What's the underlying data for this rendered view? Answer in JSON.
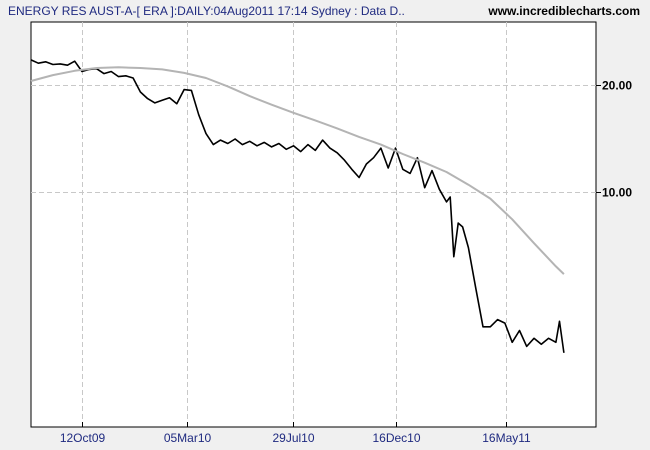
{
  "header": {
    "title": "ENERGY RES AUST-A-[ ERA ]:DAILY:04Aug2011 17:14 Sydney : Data D..",
    "site": "www.incrediblecharts.com"
  },
  "colors": {
    "background": "#f0f0f0",
    "plot_background": "#ffffff",
    "price_line": "#000000",
    "moving_average": "#b4b4b4",
    "grid": "#c8c8c8",
    "title_text": "#1f2a80"
  },
  "chart_data": {
    "type": "line",
    "title": "ENERGY RES AUST-A-[ ERA ]:DAILY:04Aug2011 17:14 Sydney : Data D..",
    "y_scale": "log",
    "ylim": [
      2.2,
      30
    ],
    "xlim": [
      "2009-08-03",
      "2011-09-17"
    ],
    "grid": true,
    "x_ticks": [
      {
        "date": "2009-10-12",
        "label": "12Oct09"
      },
      {
        "date": "2010-03-05",
        "label": "05Mar10"
      },
      {
        "date": "2010-07-29",
        "label": "29Jul10"
      },
      {
        "date": "2010-12-16",
        "label": "16Dec10"
      },
      {
        "date": "2011-05-16",
        "label": "16May11"
      }
    ],
    "y_ticks": [
      {
        "value": 20,
        "label": "20.00"
      },
      {
        "value": 10,
        "label": "10.00"
      }
    ],
    "series": [
      {
        "name": "",
        "style": "price",
        "x": [
          "2009-08-03",
          "2009-08-13",
          "2009-08-23",
          "2009-09-02",
          "2009-09-12",
          "2009-09-22",
          "2009-10-02",
          "2009-10-12",
          "2009-10-22",
          "2009-11-01",
          "2009-11-11",
          "2009-11-21",
          "2009-12-01",
          "2009-12-11",
          "2009-12-21",
          "2009-12-31",
          "2010-01-10",
          "2010-01-20",
          "2010-01-30",
          "2010-02-09",
          "2010-02-19",
          "2010-03-01",
          "2010-03-11",
          "2010-03-21",
          "2010-03-31",
          "2010-04-10",
          "2010-04-20",
          "2010-04-30",
          "2010-05-10",
          "2010-05-20",
          "2010-05-30",
          "2010-06-09",
          "2010-06-19",
          "2010-06-29",
          "2010-07-09",
          "2010-07-19",
          "2010-07-29",
          "2010-08-08",
          "2010-08-18",
          "2010-08-28",
          "2010-09-07",
          "2010-09-17",
          "2010-09-27",
          "2010-10-07",
          "2010-10-17",
          "2010-10-27",
          "2010-11-06",
          "2010-11-16",
          "2010-11-26",
          "2010-12-06",
          "2010-12-16",
          "2010-12-26",
          "2011-01-05",
          "2011-01-15",
          "2011-01-25",
          "2011-02-04",
          "2011-02-14",
          "2011-02-24",
          "2011-03-01",
          "2011-03-06",
          "2011-03-12",
          "2011-03-18",
          "2011-03-26",
          "2011-04-05",
          "2011-04-15",
          "2011-04-25",
          "2011-05-05",
          "2011-05-15",
          "2011-05-25",
          "2011-06-04",
          "2011-06-14",
          "2011-06-24",
          "2011-07-04",
          "2011-07-14",
          "2011-07-24",
          "2011-07-29",
          "2011-08-04"
        ],
        "y": [
          23.5,
          23.0,
          23.2,
          22.8,
          22.9,
          22.7,
          23.3,
          21.8,
          22.1,
          22.2,
          21.5,
          21.8,
          21.1,
          21.2,
          20.9,
          19.1,
          18.3,
          17.8,
          18.1,
          18.4,
          17.7,
          19.4,
          19.3,
          16.5,
          14.6,
          13.6,
          14.0,
          13.7,
          14.1,
          13.6,
          13.9,
          13.5,
          13.8,
          13.4,
          13.7,
          13.2,
          13.5,
          13.0,
          13.6,
          13.1,
          14.0,
          13.3,
          12.9,
          12.3,
          11.6,
          11.0,
          12.0,
          12.5,
          13.3,
          11.7,
          13.3,
          11.6,
          11.3,
          12.5,
          10.3,
          11.5,
          10.2,
          9.4,
          9.7,
          6.6,
          8.2,
          8.0,
          7.0,
          5.4,
          4.2,
          4.2,
          4.4,
          4.3,
          3.8,
          4.1,
          3.7,
          3.9,
          3.75,
          3.9,
          3.8,
          4.35,
          3.55
        ]
      },
      {
        "name": "",
        "style": "moving-average",
        "x": [
          "2009-08-03",
          "2009-09-02",
          "2009-10-02",
          "2009-11-01",
          "2009-12-01",
          "2009-12-31",
          "2010-01-30",
          "2010-03-01",
          "2010-03-31",
          "2010-04-30",
          "2010-05-30",
          "2010-06-29",
          "2010-07-29",
          "2010-08-28",
          "2010-09-27",
          "2010-10-27",
          "2010-11-26",
          "2010-12-26",
          "2011-01-25",
          "2011-02-24",
          "2011-03-26",
          "2011-04-25",
          "2011-05-25",
          "2011-06-24",
          "2011-07-24",
          "2011-08-04"
        ],
        "y": [
          20.5,
          21.3,
          21.9,
          22.3,
          22.4,
          22.3,
          22.1,
          21.6,
          20.9,
          19.8,
          18.6,
          17.6,
          16.7,
          15.9,
          15.1,
          14.3,
          13.6,
          12.8,
          12.1,
          11.4,
          10.5,
          9.6,
          8.4,
          7.2,
          6.2,
          5.9
        ]
      }
    ]
  }
}
